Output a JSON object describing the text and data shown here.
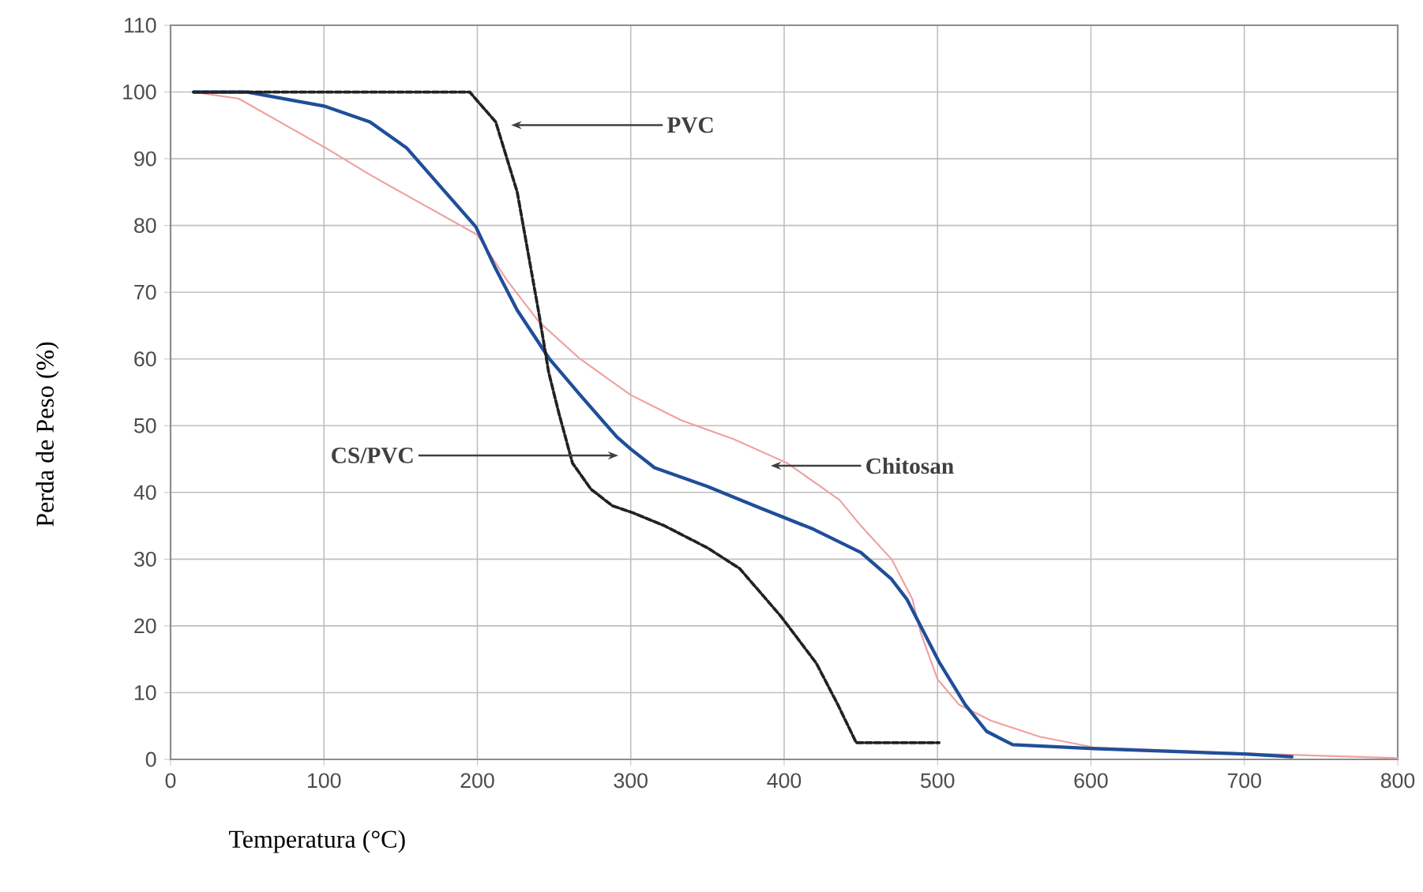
{
  "chart_data": {
    "type": "line",
    "xlabel": "Temperatura (°C)",
    "ylabel": "Perda de Peso (%)",
    "xlim": [
      0,
      800
    ],
    "ylim": [
      0,
      110
    ],
    "xticks": [
      0,
      100,
      200,
      300,
      400,
      500,
      600,
      700,
      800
    ],
    "yticks": [
      0,
      10,
      20,
      30,
      40,
      50,
      60,
      70,
      80,
      90,
      100,
      110
    ],
    "grid": true,
    "marker": "none",
    "annotations": [
      "PVC",
      "CS/PVC",
      "Chitosan"
    ],
    "series": [
      {
        "color": "#222222",
        "line_style": "dashed",
        "x": [
          15,
          100,
          195,
          212,
          226,
          233,
          240,
          246.5,
          253,
          262,
          274,
          288,
          302,
          322,
          350,
          371,
          398,
          421,
          435,
          447,
          501
        ],
        "values": [
          100,
          100,
          100,
          95.5,
          85,
          76,
          67,
          58,
          52,
          44.4,
          40.5,
          38,
          36.9,
          35,
          31.7,
          28.6,
          21.4,
          14.4,
          8.2,
          2.5,
          2.5
        ]
      },
      {
        "color": "#1f4e9a",
        "line_style": "solid",
        "x": [
          15,
          50,
          100,
          130,
          154,
          178,
          199,
          212,
          226,
          247,
          267,
          291,
          300,
          315.5,
          350,
          384,
          419,
          450,
          470,
          480,
          501,
          518,
          532,
          549,
          602,
          700,
          731
        ],
        "values": [
          100,
          100,
          97.9,
          95.5,
          91.6,
          85.3,
          79.8,
          73.5,
          67.3,
          60,
          54.6,
          48.3,
          46.5,
          43.7,
          40.9,
          37.7,
          34.5,
          31,
          27,
          24,
          14.6,
          8.2,
          4.2,
          2.2,
          1.6,
          0.8,
          0.4
        ]
      },
      {
        "color": "#f0a0a0",
        "line_style": "solid",
        "x": [
          15,
          44.5,
          102,
          130,
          154,
          200,
          219,
          240,
          267,
          300,
          333,
          367,
          402,
          436,
          450,
          470,
          483.6,
          489,
          500,
          514,
          535,
          566.5,
          602,
          700,
          800
        ],
        "values": [
          100,
          99,
          91.5,
          87.6,
          84.5,
          78.6,
          71.9,
          65.6,
          60,
          54.6,
          50.8,
          48,
          44.4,
          38.9,
          35,
          30,
          24,
          19,
          12,
          8.2,
          5.8,
          3.4,
          1.8,
          0.9,
          0.2
        ]
      }
    ]
  }
}
